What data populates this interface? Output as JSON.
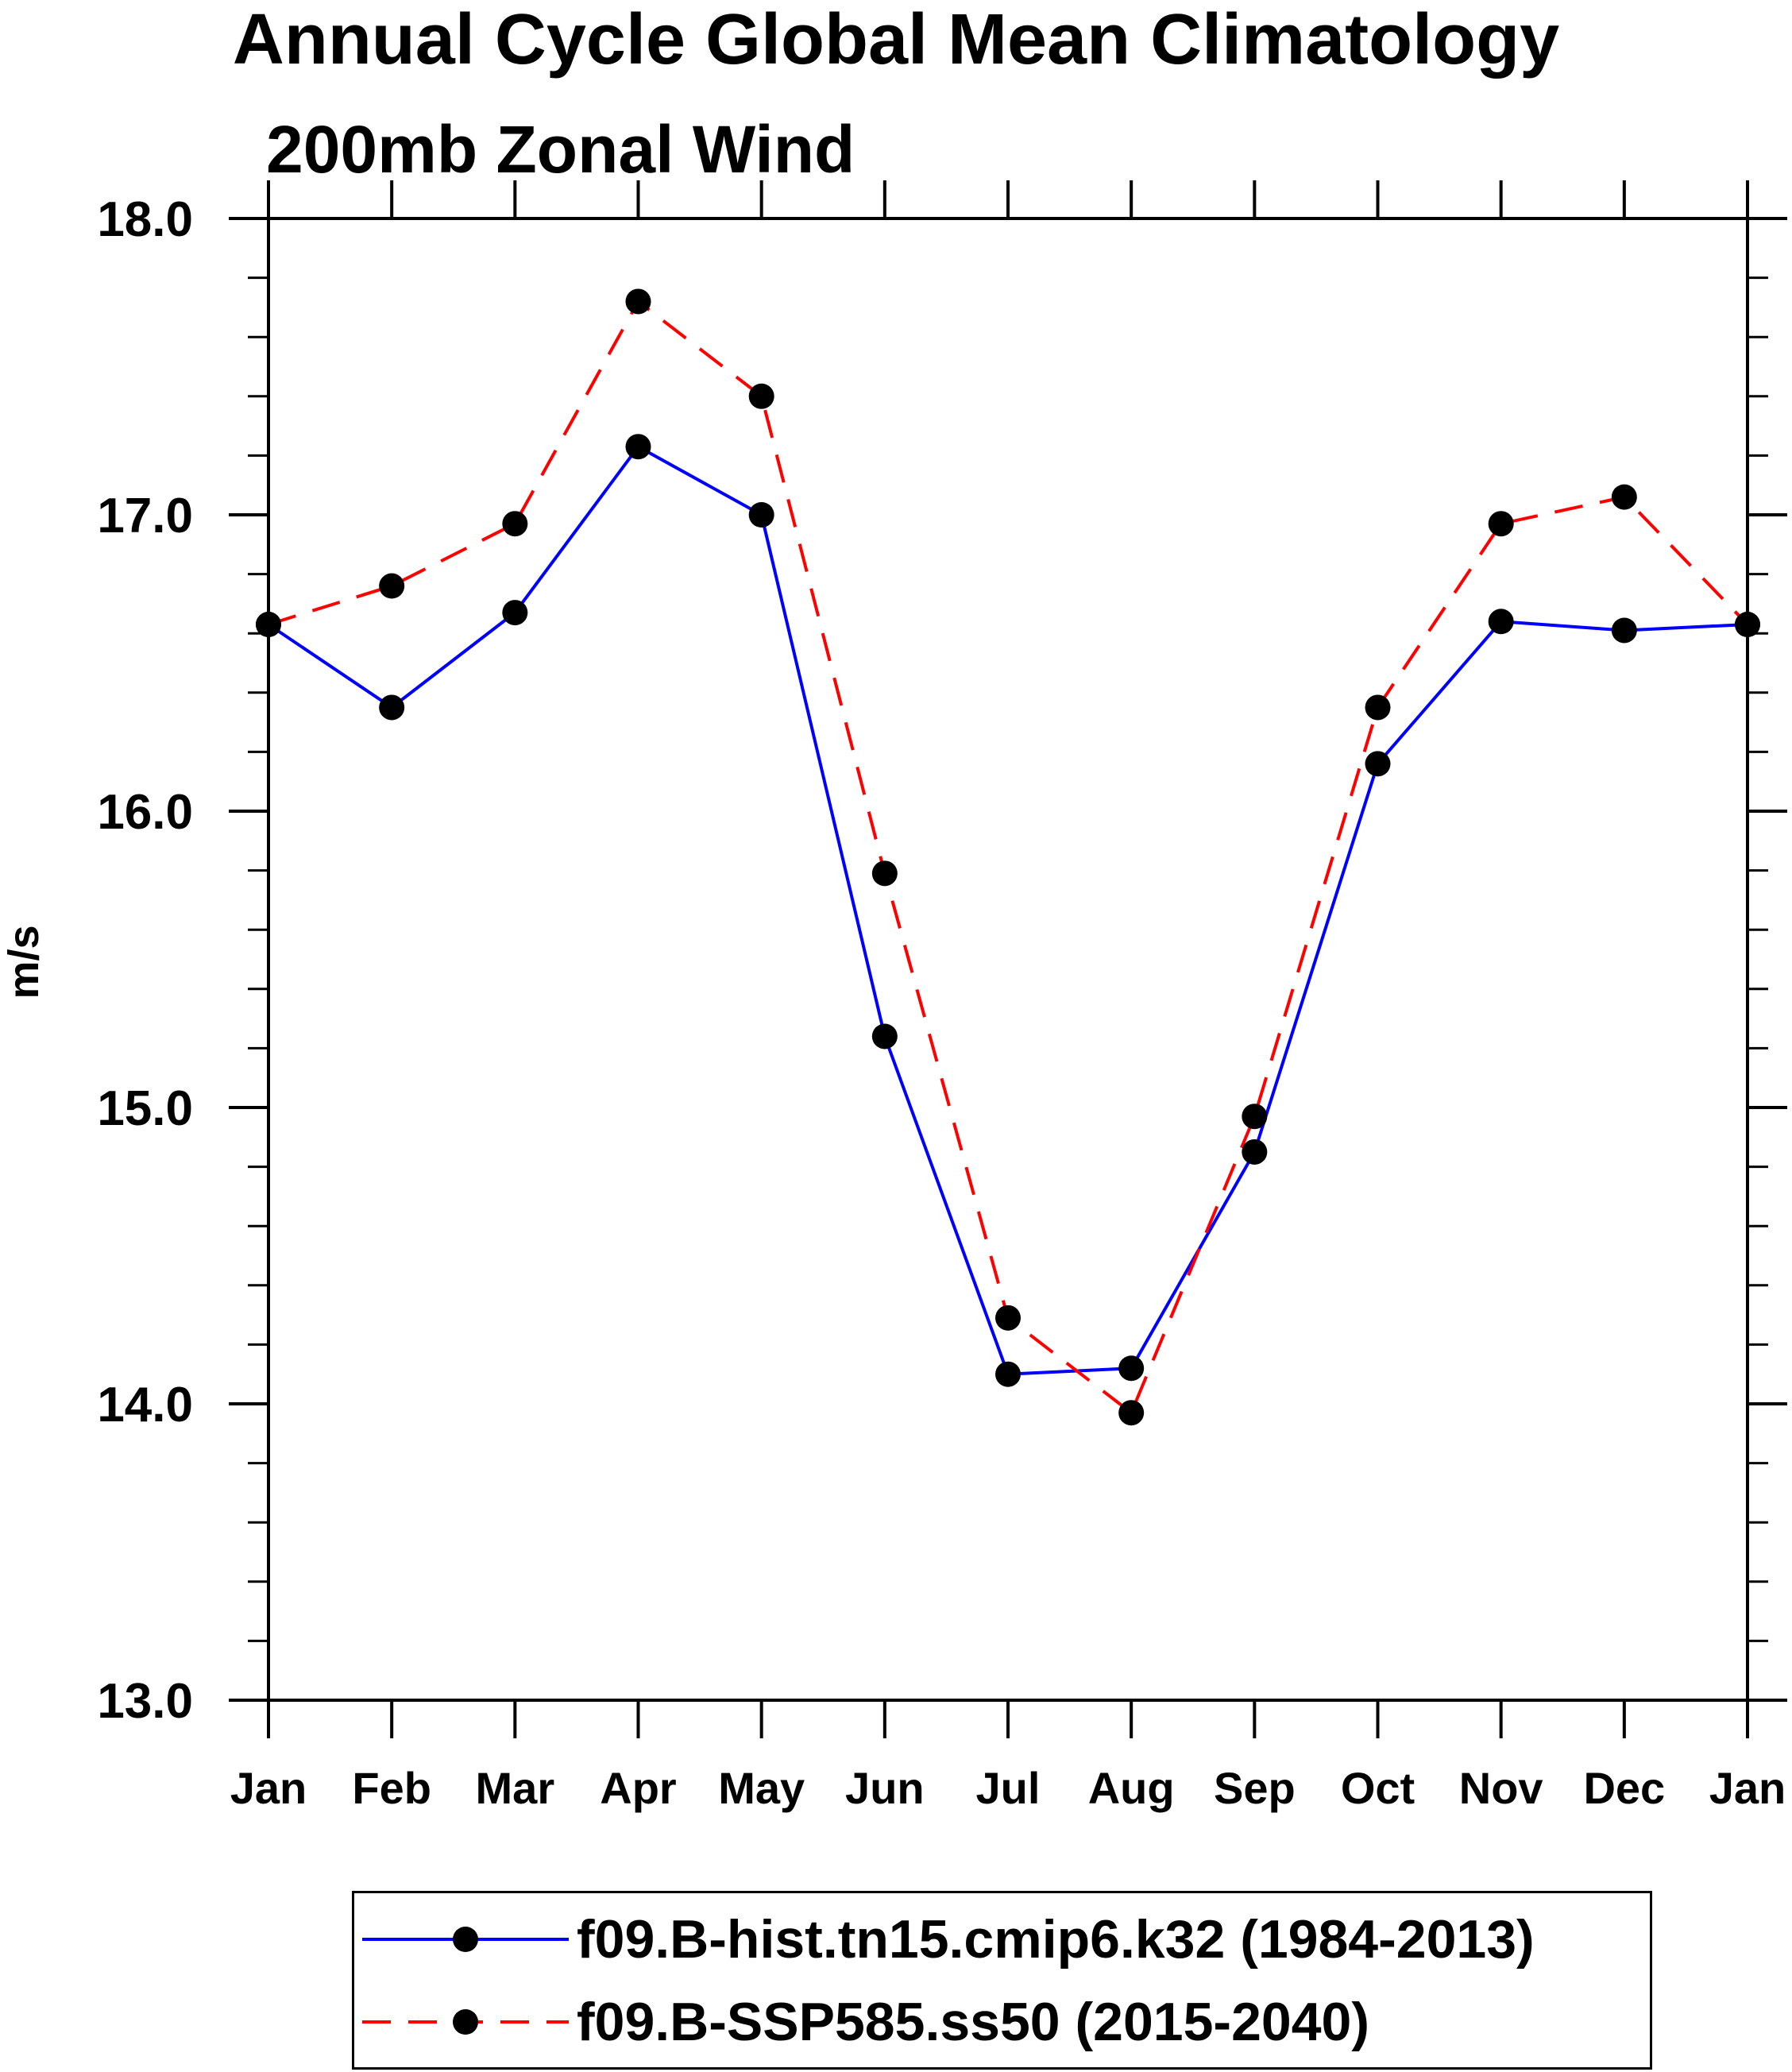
{
  "chart_data": {
    "type": "line",
    "title": "Annual Cycle Global Mean Climatology",
    "subtitle": "200mb Zonal Wind",
    "xlabel": "",
    "ylabel": "m/s",
    "categories": [
      "Jan",
      "Feb",
      "Mar",
      "Apr",
      "May",
      "Jun",
      "Jul",
      "Aug",
      "Sep",
      "Oct",
      "Nov",
      "Dec",
      "Jan"
    ],
    "ylim": [
      13.0,
      18.0
    ],
    "yticks": [
      "13.0",
      "14.0",
      "15.0",
      "16.0",
      "17.0",
      "18.0"
    ],
    "minor_ytick_step": 0.2,
    "grid": false,
    "legend_position": "bottom",
    "series": [
      {
        "name": "f09.B-hist.tn15.cmip6.k32 (1984-2013)",
        "color": "#0000ff",
        "style": "solid",
        "marker": "circle",
        "values": [
          16.63,
          16.35,
          16.67,
          17.23,
          17.0,
          15.24,
          14.1,
          14.12,
          14.85,
          16.16,
          16.64,
          16.61,
          16.63
        ]
      },
      {
        "name": "f09.B-SSP585.ss50 (2015-2040)",
        "color": "#ff0000",
        "style": "dashed",
        "marker": "circle",
        "values": [
          16.63,
          16.76,
          16.97,
          17.72,
          17.4,
          15.79,
          14.29,
          13.97,
          14.97,
          16.35,
          16.97,
          17.06,
          16.63
        ]
      }
    ]
  }
}
